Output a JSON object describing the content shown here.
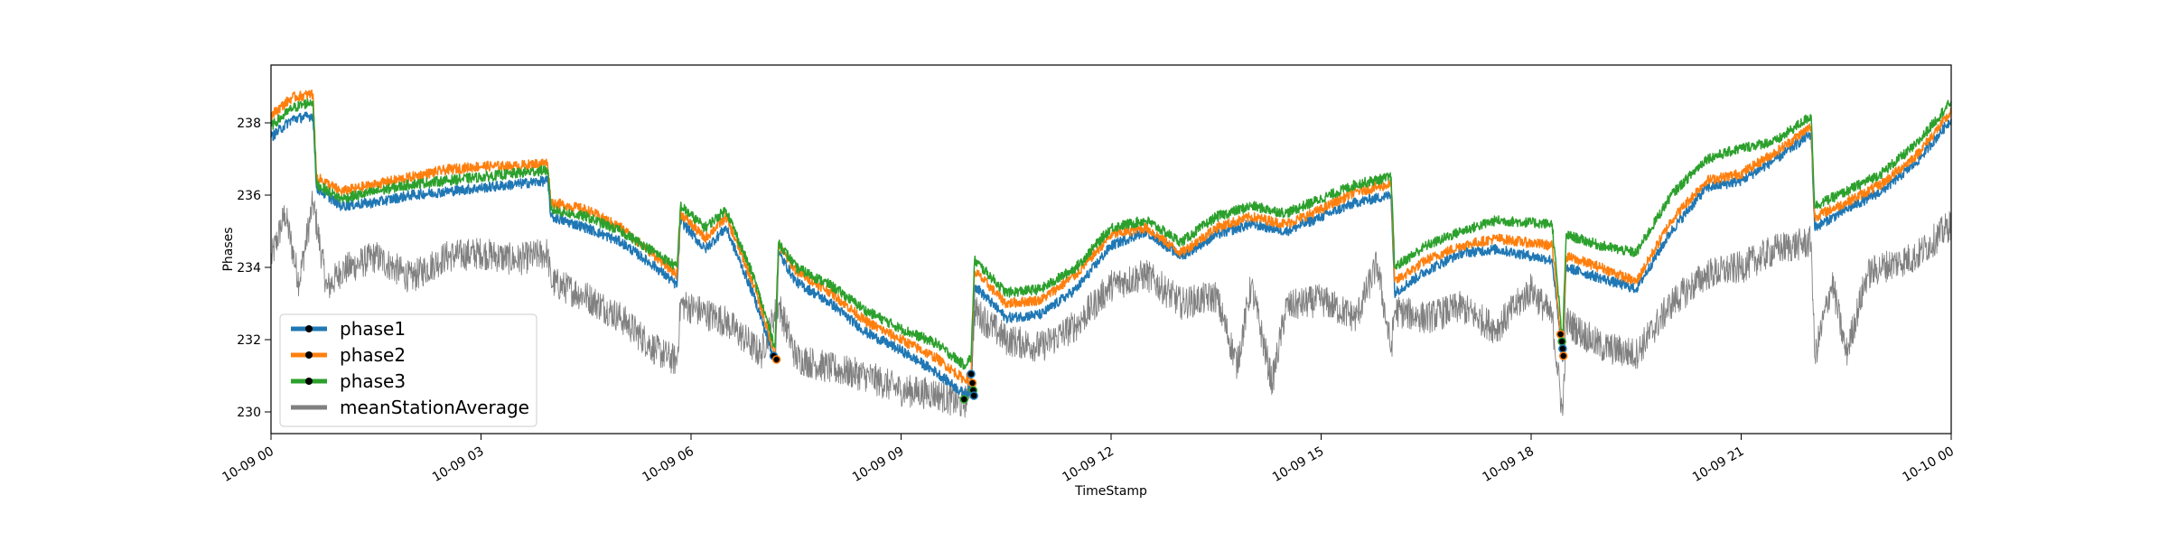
{
  "chart_data": {
    "type": "line",
    "xlabel": "TimeStamp",
    "ylabel": "Phases",
    "xlim": [
      "10-09 00:00",
      "10-10 00:00"
    ],
    "ylim": [
      229.4,
      239.6
    ],
    "x_ticks": [
      {
        "hour": 0,
        "label": "10-09 00"
      },
      {
        "hour": 3,
        "label": "10-09 03"
      },
      {
        "hour": 6,
        "label": "10-09 06"
      },
      {
        "hour": 9,
        "label": "10-09 09"
      },
      {
        "hour": 12,
        "label": "10-09 12"
      },
      {
        "hour": 15,
        "label": "10-09 15"
      },
      {
        "hour": 18,
        "label": "10-09 18"
      },
      {
        "hour": 21,
        "label": "10-09 21"
      },
      {
        "hour": 24,
        "label": "10-10 00"
      }
    ],
    "y_ticks": [
      230,
      232,
      234,
      236,
      238
    ],
    "grid": false,
    "legend_position": "lower-left",
    "series": [
      {
        "name": "phase1",
        "color": "#1f77b4",
        "x_hours": [
          0,
          0.3,
          0.6,
          0.65,
          1,
          1.5,
          2,
          2.5,
          3,
          3.5,
          3.95,
          4.0,
          4.5,
          5,
          5.5,
          5.8,
          5.85,
          6.2,
          6.5,
          6.9,
          7.2,
          7.25,
          7.5,
          8,
          8.5,
          9,
          9.5,
          9.9,
          10.0,
          10.05,
          10.5,
          11,
          11.5,
          12,
          12.5,
          13,
          13.5,
          14,
          14.5,
          15,
          15.5,
          16.0,
          16.05,
          16.5,
          17,
          17.5,
          18.3,
          18.45,
          18.5,
          19,
          19.5,
          20,
          20.5,
          21,
          21.5,
          22.0,
          22.05,
          22.5,
          23,
          23.5,
          24
        ],
        "values": [
          237.6,
          238.1,
          238.2,
          236.2,
          235.7,
          235.8,
          236.0,
          236.1,
          236.2,
          236.3,
          236.4,
          235.4,
          235.1,
          234.7,
          234.0,
          233.5,
          235.3,
          234.5,
          235.1,
          233.2,
          231.4,
          234.4,
          233.6,
          233.0,
          232.2,
          231.7,
          231.1,
          230.5,
          230.6,
          233.5,
          232.6,
          232.7,
          233.4,
          234.6,
          235.0,
          234.3,
          234.9,
          235.2,
          235.0,
          235.4,
          235.8,
          236.0,
          233.3,
          233.9,
          234.4,
          234.5,
          234.2,
          231.4,
          234.0,
          233.7,
          233.4,
          235.0,
          236.2,
          236.4,
          237.0,
          237.7,
          235.1,
          235.6,
          236.1,
          236.9,
          238.1
        ]
      },
      {
        "name": "phase2",
        "color": "#ff7f0e",
        "x_hours": [
          0,
          0.3,
          0.6,
          0.65,
          1,
          1.5,
          2,
          2.5,
          3,
          3.5,
          3.95,
          4.0,
          4.5,
          5,
          5.5,
          5.8,
          5.85,
          6.2,
          6.5,
          6.9,
          7.2,
          7.25,
          7.5,
          8,
          8.5,
          9,
          9.5,
          9.9,
          10.0,
          10.05,
          10.5,
          11,
          11.5,
          12,
          12.5,
          13,
          13.5,
          14,
          14.5,
          15,
          15.5,
          16.0,
          16.05,
          16.5,
          17,
          17.5,
          18.3,
          18.45,
          18.5,
          19,
          19.5,
          20,
          20.5,
          21,
          21.5,
          22.0,
          22.05,
          22.5,
          23,
          23.5,
          24
        ],
        "values": [
          238.2,
          238.7,
          238.8,
          236.5,
          236.1,
          236.3,
          236.5,
          236.7,
          236.8,
          236.8,
          236.9,
          235.8,
          235.6,
          235.1,
          234.3,
          233.8,
          235.5,
          234.8,
          235.4,
          233.5,
          231.6,
          234.6,
          233.9,
          233.3,
          232.5,
          232.0,
          231.5,
          230.9,
          231.0,
          233.9,
          233.0,
          233.1,
          233.8,
          234.9,
          235.1,
          234.4,
          235.1,
          235.4,
          235.2,
          235.6,
          236.1,
          236.3,
          233.6,
          234.2,
          234.6,
          234.8,
          234.6,
          231.6,
          234.3,
          234.0,
          233.6,
          235.3,
          236.4,
          236.6,
          237.2,
          237.9,
          235.4,
          235.8,
          236.3,
          237.1,
          238.3
        ]
      },
      {
        "name": "phase3",
        "color": "#2ca02c",
        "x_hours": [
          0,
          0.3,
          0.6,
          0.65,
          1,
          1.5,
          2,
          2.5,
          3,
          3.5,
          3.95,
          4.0,
          4.5,
          5,
          5.5,
          5.8,
          5.85,
          6.2,
          6.5,
          6.9,
          7.2,
          7.25,
          7.5,
          8,
          8.5,
          9,
          9.5,
          9.9,
          10.0,
          10.05,
          10.5,
          11,
          11.5,
          12,
          12.5,
          13,
          13.5,
          14,
          14.5,
          15,
          15.5,
          16.0,
          16.05,
          16.5,
          17,
          17.5,
          18.3,
          18.45,
          18.5,
          19,
          19.5,
          20,
          20.5,
          21,
          21.5,
          22.0,
          22.05,
          22.5,
          23,
          23.5,
          24
        ],
        "values": [
          237.9,
          238.4,
          238.6,
          236.3,
          235.9,
          236.1,
          236.3,
          236.4,
          236.5,
          236.6,
          236.7,
          235.6,
          235.4,
          235.0,
          234.4,
          234.0,
          235.7,
          235.1,
          235.6,
          233.7,
          231.8,
          234.7,
          234.0,
          233.5,
          232.8,
          232.3,
          231.9,
          231.3,
          231.5,
          234.2,
          233.3,
          233.4,
          234.0,
          235.1,
          235.3,
          234.7,
          235.4,
          235.7,
          235.5,
          235.9,
          236.3,
          236.5,
          234.0,
          234.6,
          235.0,
          235.3,
          235.2,
          231.9,
          234.9,
          234.6,
          234.4,
          236.0,
          237.0,
          237.3,
          237.5,
          238.2,
          235.7,
          236.1,
          236.6,
          237.4,
          238.6
        ]
      },
      {
        "name": "meanStationAverage",
        "color": "#808080",
        "x_hours": [
          0,
          0.2,
          0.4,
          0.6,
          0.8,
          1.0,
          1.5,
          2.0,
          2.5,
          3.0,
          3.5,
          3.95,
          4.0,
          4.5,
          5.0,
          5.5,
          5.8,
          5.85,
          6.5,
          7.0,
          7.25,
          7.5,
          8.0,
          8.5,
          9.0,
          9.5,
          9.9,
          10.0,
          10.05,
          10.5,
          11.0,
          11.5,
          12.0,
          12.5,
          13.0,
          13.5,
          13.8,
          14.0,
          14.3,
          14.5,
          15.0,
          15.5,
          15.8,
          16.0,
          16.05,
          16.5,
          17.0,
          17.5,
          18.0,
          18.3,
          18.45,
          18.5,
          19.0,
          19.5,
          20.0,
          20.5,
          21.0,
          21.5,
          22.0,
          22.05,
          22.3,
          22.5,
          22.8,
          23.0,
          23.5,
          24.0
        ],
        "values": [
          234.2,
          235.5,
          233.6,
          235.8,
          233.4,
          233.9,
          234.3,
          233.7,
          234.3,
          234.4,
          234.2,
          234.4,
          233.6,
          233.2,
          232.6,
          231.7,
          231.4,
          233.0,
          232.5,
          231.6,
          233.0,
          231.5,
          231.2,
          231.0,
          230.6,
          230.5,
          230.2,
          230.9,
          232.8,
          232.0,
          231.8,
          232.4,
          233.5,
          233.8,
          233.0,
          233.2,
          231.3,
          233.5,
          230.8,
          232.9,
          233.1,
          232.6,
          234.1,
          231.7,
          232.8,
          232.6,
          232.9,
          232.3,
          233.4,
          232.6,
          229.9,
          232.5,
          231.8,
          231.6,
          233.0,
          233.8,
          234.0,
          234.5,
          234.7,
          231.5,
          233.6,
          231.6,
          233.8,
          234.0,
          234.3,
          235.2
        ]
      }
    ]
  }
}
